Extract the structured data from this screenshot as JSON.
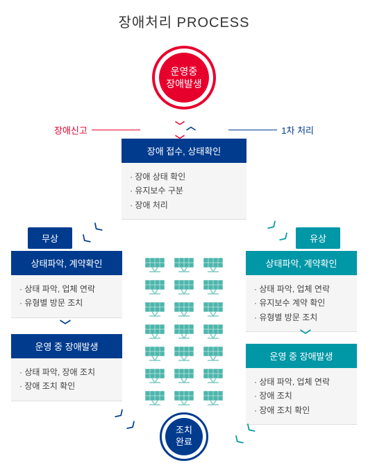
{
  "title": "장애처리 PROCESS",
  "start": {
    "line1": "운영중",
    "line2": "장애발생",
    "outer_color": "#e8002d",
    "inner_color": "#e8002d"
  },
  "end": {
    "line1": "조치",
    "line2": "완료",
    "outer_color": "#003b8e",
    "inner_color": "#003b8e"
  },
  "labels": {
    "left": "장애신고",
    "right": "1차 처리",
    "left_color": "#e8002d",
    "right_color": "#003b8e"
  },
  "intake": {
    "header": "장애 접수, 상태확인",
    "header_color": "#003b8e",
    "items": [
      "장애 상태 확인",
      "유지보수 구분",
      "장애 처리"
    ]
  },
  "tags": {
    "left": {
      "text": "무상",
      "color": "#003b8e"
    },
    "right": {
      "text": "유상",
      "color": "#0097a7"
    }
  },
  "left_boxes": [
    {
      "header": "상태파악, 계약확인",
      "header_color": "#003b8e",
      "items": [
        "상태 파악, 업체 연락",
        "유형별 방문 조치"
      ]
    },
    {
      "header": "운영 중 장애발생",
      "header_color": "#003b8e",
      "items": [
        "상태 파악, 장애 조치",
        "장애 조치 확인"
      ]
    }
  ],
  "right_boxes": [
    {
      "header": "상태파악, 계약확인",
      "header_color": "#0097a7",
      "items": [
        "상태 파악, 업체 연락",
        "유지보수 계약 확인",
        "유형별 방문 조치"
      ]
    },
    {
      "header": "운영 중 장애발생",
      "header_color": "#0097a7",
      "items": [
        "상태 파악, 업체 연락",
        "장애 조치",
        "장애 조치 확인"
      ]
    }
  ],
  "panels": {
    "rows": 7,
    "cols": 3,
    "panel_color": "#4db6ac",
    "stand_color": "#80cbc4"
  },
  "colors": {
    "bg": "#ffffff",
    "box_bg": "#f5f5f5",
    "text": "#444444"
  }
}
